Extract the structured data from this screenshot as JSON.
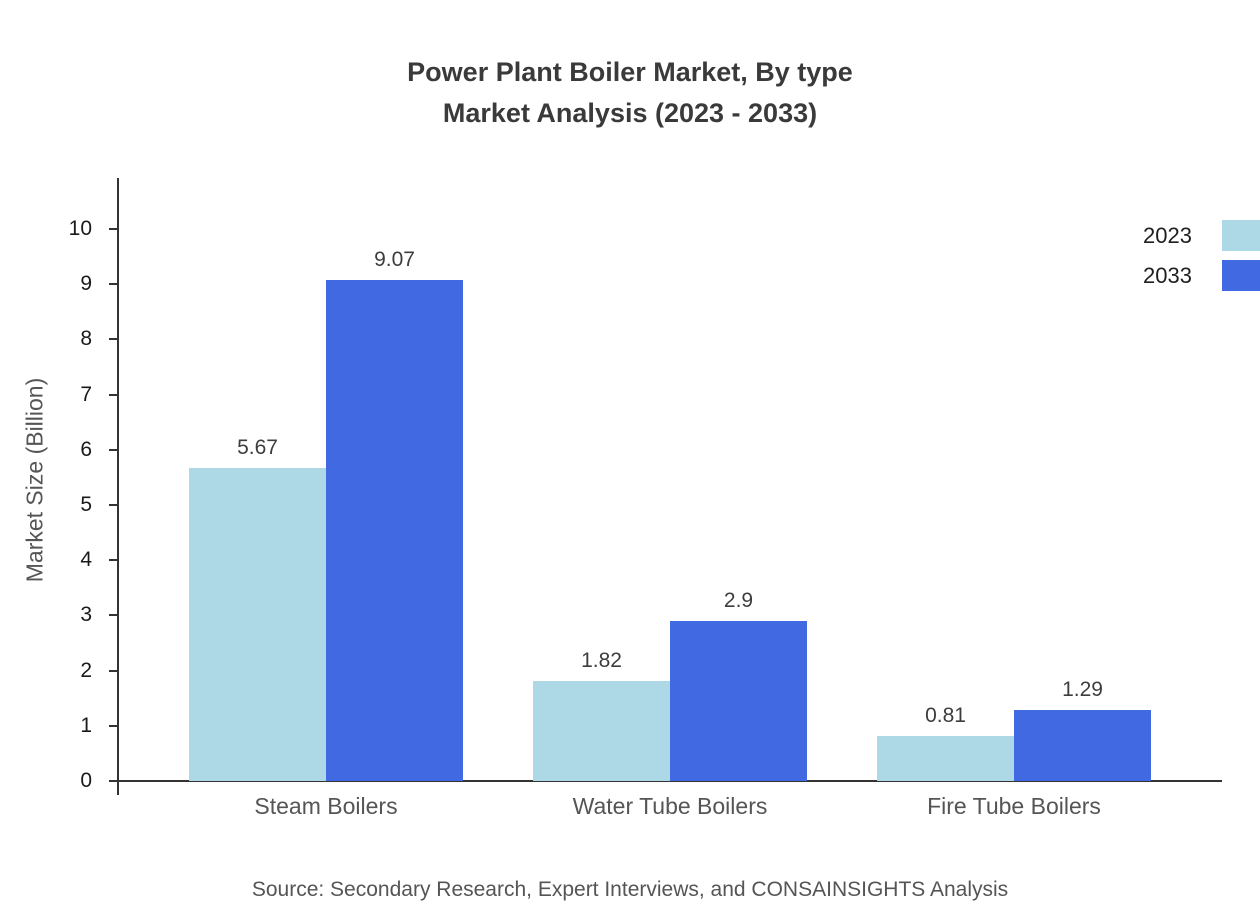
{
  "title": {
    "line1": "Power Plant Boiler Market, By type",
    "line2": "Market Analysis (2023 - 2033)"
  },
  "source": "Source: Secondary Research, Expert Interviews, and CONSAINSIGHTS Analysis",
  "chart_data": {
    "type": "bar",
    "title": "Power Plant Boiler Market, By type Market Analysis (2023 - 2033)",
    "categories": [
      "Steam Boilers",
      "Water Tube Boilers",
      "Fire Tube Boilers"
    ],
    "series": [
      {
        "name": "2023",
        "color": "#ADD8E6",
        "values": [
          5.67,
          1.82,
          0.81
        ]
      },
      {
        "name": "2033",
        "color": "#4169E1",
        "values": [
          9.07,
          2.9,
          1.29
        ]
      }
    ],
    "xlabel": "",
    "ylabel": "Market Size (Billion)",
    "ylim": [
      0,
      10
    ],
    "yticks": [
      0,
      1,
      2,
      3,
      4,
      5,
      6,
      7,
      8,
      9,
      10
    ],
    "grid": false,
    "legend_position": "top-right",
    "value_labels": true
  }
}
